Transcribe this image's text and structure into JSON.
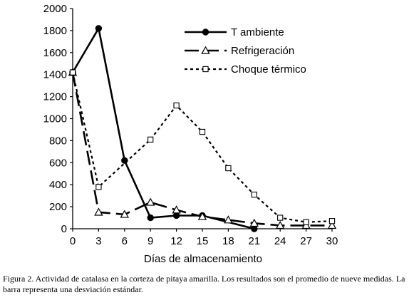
{
  "chart_data": {
    "type": "line",
    "title": "",
    "xlabel": "Días de almacenamiento",
    "ylabel": "",
    "x": [
      0,
      3,
      6,
      9,
      12,
      15,
      18,
      21,
      24,
      27,
      30
    ],
    "xlim": [
      0,
      30
    ],
    "ylim": [
      0,
      2000
    ],
    "yticks": [
      0,
      200,
      400,
      600,
      800,
      1000,
      1200,
      1400,
      1600,
      1800,
      2000
    ],
    "grid": false,
    "legend_position": "top-right",
    "series": [
      {
        "name": "T ambiente",
        "line_style": "solid",
        "marker": "filled-circle",
        "x": [
          0,
          3,
          6,
          9,
          12,
          15,
          21
        ],
        "y": [
          1420,
          1820,
          620,
          100,
          120,
          120,
          0
        ]
      },
      {
        "name": "Refrigeración",
        "line_style": "long-dash",
        "marker": "open-triangle",
        "x": [
          0,
          3,
          6,
          9,
          12,
          15,
          18,
          21,
          24,
          27,
          30
        ],
        "y": [
          1420,
          150,
          130,
          240,
          170,
          110,
          80,
          50,
          30,
          30,
          30
        ]
      },
      {
        "name": "Choque térmico",
        "line_style": "dotted",
        "marker": "open-square",
        "x": [
          0,
          3,
          9,
          12,
          15,
          18,
          21,
          24,
          27,
          30
        ],
        "y": [
          1420,
          380,
          810,
          1120,
          880,
          550,
          310,
          100,
          60,
          70
        ]
      }
    ]
  },
  "caption": "Figura 2. Actividad de catalasa en la corteza de pitaya amarilla. Los resultados son el promedio de nueve medidas. La barra representa una desviación estándar."
}
